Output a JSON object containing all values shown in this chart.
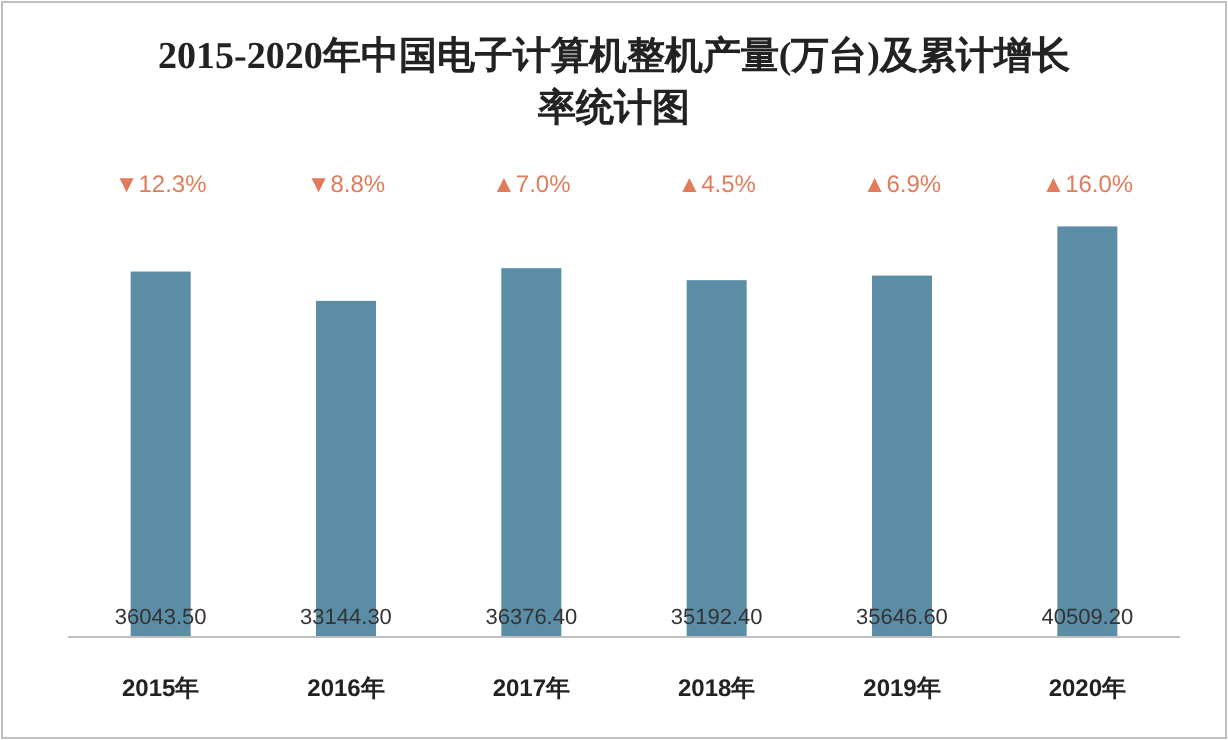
{
  "chart_data": {
    "type": "bar",
    "title": "2015-2020年中国电子计算机整机产量(万台)及累计增长率统计图",
    "categories": [
      "2015年",
      "2016年",
      "2017年",
      "2018年",
      "2019年",
      "2020年"
    ],
    "values": [
      36043.5,
      33144.3,
      36376.4,
      35192.4,
      35646.6,
      40509.2
    ],
    "color": "#5b8ea6",
    "value_labels": [
      "36043.50",
      "33144.30",
      "36376.40",
      "35192.40",
      "35646.60",
      "40509.20"
    ],
    "annotations": [
      "▼12.3%",
      "▼8.8%",
      "▲7.0%",
      "▲4.5%",
      "▲6.9%",
      "▲16.0%"
    ],
    "grid": false,
    "legend": false
  }
}
